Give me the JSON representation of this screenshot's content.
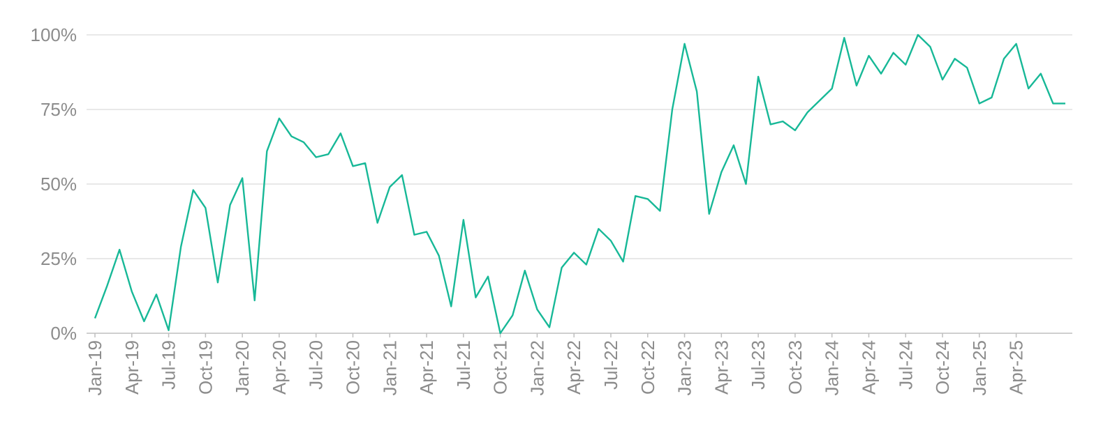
{
  "chart_data": {
    "type": "line",
    "title": "",
    "xlabel": "",
    "ylabel": "",
    "ylim": [
      0,
      100
    ],
    "yticks": [
      "0%",
      "25%",
      "50%",
      "75%",
      "100%"
    ],
    "ytick_values": [
      0,
      25,
      50,
      75,
      100
    ],
    "grid": true,
    "legend": "none",
    "line_color": "#17b897",
    "x_tick_labels": [
      "Jan-19",
      "Apr-19",
      "Jul-19",
      "Oct-19",
      "Jan-20",
      "Apr-20",
      "Jul-20",
      "Oct-20",
      "Jan-21",
      "Apr-21",
      "Jul-21",
      "Oct-21",
      "Jan-22",
      "Apr-22",
      "Jul-22",
      "Oct-22",
      "Jan-23",
      "Apr-23",
      "Jul-23",
      "Oct-23",
      "Jan-24",
      "Apr-24",
      "Jul-24",
      "Oct-24",
      "Jan-25",
      "Apr-25"
    ],
    "x": [
      "Jan-19",
      "Feb-19",
      "Mar-19",
      "Apr-19",
      "May-19",
      "Jun-19",
      "Jul-19",
      "Aug-19",
      "Sep-19",
      "Oct-19",
      "Nov-19",
      "Dec-19",
      "Jan-20",
      "Feb-20",
      "Mar-20",
      "Apr-20",
      "May-20",
      "Jun-20",
      "Jul-20",
      "Aug-20",
      "Sep-20",
      "Oct-20",
      "Nov-20",
      "Dec-20",
      "Jan-21",
      "Feb-21",
      "Mar-21",
      "Apr-21",
      "May-21",
      "Jun-21",
      "Jul-21",
      "Aug-21",
      "Sep-21",
      "Oct-21",
      "Nov-21",
      "Dec-21",
      "Jan-22",
      "Feb-22",
      "Mar-22",
      "Apr-22",
      "May-22",
      "Jun-22",
      "Jul-22",
      "Aug-22",
      "Sep-22",
      "Oct-22",
      "Nov-22",
      "Dec-22",
      "Jan-23",
      "Feb-23",
      "Mar-23",
      "Apr-23",
      "May-23",
      "Jun-23",
      "Jul-23",
      "Aug-23",
      "Sep-23",
      "Oct-23",
      "Nov-23",
      "Dec-23",
      "Jan-24",
      "Feb-24",
      "Mar-24",
      "Apr-24",
      "May-24",
      "Jun-24",
      "Jul-24",
      "Aug-24",
      "Sep-24",
      "Oct-24",
      "Nov-24",
      "Dec-24",
      "Jan-25",
      "Feb-25",
      "Mar-25",
      "Apr-25",
      "May-25",
      "Jun-25",
      "Jul-25",
      "Aug-25"
    ],
    "series": [
      {
        "values": [
          5,
          16,
          28,
          14,
          4,
          13,
          1,
          29,
          48,
          42,
          17,
          43,
          52,
          11,
          61,
          72,
          66,
          64,
          59,
          60,
          67,
          56,
          57,
          37,
          49,
          53,
          33,
          34,
          26,
          9,
          38,
          12,
          19,
          0,
          6,
          21,
          8,
          2,
          22,
          27,
          23,
          35,
          31,
          24,
          46,
          45,
          41,
          75,
          97,
          81,
          40,
          54,
          63,
          50,
          86,
          70,
          71,
          68,
          74,
          78,
          82,
          99,
          83,
          93,
          87,
          94,
          90,
          100,
          96,
          85,
          92,
          89,
          77,
          79,
          92,
          97,
          82,
          87,
          77,
          77
        ]
      }
    ]
  }
}
